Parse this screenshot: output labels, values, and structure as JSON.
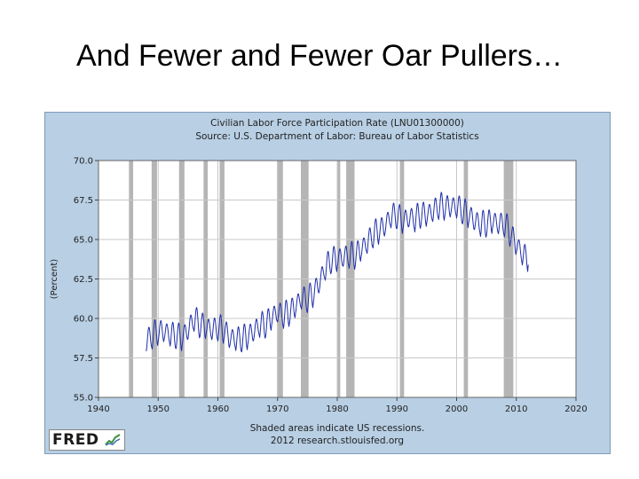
{
  "slide": {
    "title": "And Fewer and Fewer Oar Pullers…"
  },
  "logo": {
    "text": "FRED"
  },
  "chart_data": {
    "type": "line",
    "title": "Civilian Labor Force Participation Rate (LNU01300000)",
    "subtitle": "Source: U.S. Department of Labor: Bureau of Labor Statistics",
    "ylabel": "(Percent)",
    "xlabel": "",
    "footer": [
      "Shaded areas indicate US recessions.",
      "2012 research.stlouisfed.org"
    ],
    "xlim": [
      1940,
      2020
    ],
    "ylim": [
      55.0,
      70.0
    ],
    "xticks": [
      "1940",
      "1950",
      "1960",
      "1970",
      "1980",
      "1990",
      "2000",
      "2010",
      "2020"
    ],
    "yticks": [
      "55.0",
      "57.5",
      "60.0",
      "62.5",
      "65.0",
      "67.5",
      "70.0"
    ],
    "grid": true,
    "line_color": "#1f2fa8",
    "recession_color": "#b5b5b5",
    "recessions": [
      [
        1945.1,
        1945.8
      ],
      [
        1948.9,
        1949.8
      ],
      [
        1953.5,
        1954.4
      ],
      [
        1957.6,
        1958.3
      ],
      [
        1960.3,
        1961.1
      ],
      [
        1969.9,
        1970.9
      ],
      [
        1973.9,
        1975.2
      ],
      [
        1980.0,
        1980.5
      ],
      [
        1981.5,
        1982.9
      ],
      [
        1990.5,
        1991.2
      ],
      [
        2001.2,
        2001.9
      ],
      [
        2007.9,
        2009.5
      ]
    ],
    "series": [
      {
        "values": [
          [
            1948.0,
            58.6
          ],
          [
            1949.0,
            58.9
          ],
          [
            1950.0,
            59.2
          ],
          [
            1951.0,
            59.2
          ],
          [
            1952.0,
            59.0
          ],
          [
            1953.0,
            58.9
          ],
          [
            1954.0,
            58.8
          ],
          [
            1955.0,
            59.3
          ],
          [
            1956.0,
            60.0
          ],
          [
            1957.0,
            59.6
          ],
          [
            1958.0,
            59.5
          ],
          [
            1959.0,
            59.3
          ],
          [
            1960.0,
            59.4
          ],
          [
            1961.0,
            59.3
          ],
          [
            1962.0,
            58.8
          ],
          [
            1963.0,
            58.7
          ],
          [
            1964.0,
            58.7
          ],
          [
            1965.0,
            58.9
          ],
          [
            1966.0,
            59.2
          ],
          [
            1967.0,
            59.6
          ],
          [
            1968.0,
            59.6
          ],
          [
            1969.0,
            60.1
          ],
          [
            1970.0,
            60.4
          ],
          [
            1971.0,
            60.2
          ],
          [
            1972.0,
            60.4
          ],
          [
            1973.0,
            60.8
          ],
          [
            1974.0,
            61.3
          ],
          [
            1975.0,
            61.2
          ],
          [
            1976.0,
            61.6
          ],
          [
            1977.0,
            62.3
          ],
          [
            1978.0,
            63.2
          ],
          [
            1979.0,
            63.7
          ],
          [
            1980.0,
            63.8
          ],
          [
            1981.0,
            63.9
          ],
          [
            1982.0,
            64.0
          ],
          [
            1983.0,
            64.0
          ],
          [
            1984.0,
            64.4
          ],
          [
            1985.0,
            64.8
          ],
          [
            1986.0,
            65.3
          ],
          [
            1987.0,
            65.6
          ],
          [
            1988.0,
            65.9
          ],
          [
            1989.0,
            66.5
          ],
          [
            1990.0,
            66.5
          ],
          [
            1991.0,
            66.2
          ],
          [
            1992.0,
            66.4
          ],
          [
            1993.0,
            66.3
          ],
          [
            1994.0,
            66.6
          ],
          [
            1995.0,
            66.6
          ],
          [
            1996.0,
            66.8
          ],
          [
            1997.0,
            67.1
          ],
          [
            1998.0,
            67.1
          ],
          [
            1999.0,
            67.1
          ],
          [
            2000.0,
            67.1
          ],
          [
            2001.0,
            66.8
          ],
          [
            2002.0,
            66.6
          ],
          [
            2003.0,
            66.2
          ],
          [
            2004.0,
            66.0
          ],
          [
            2005.0,
            66.0
          ],
          [
            2006.0,
            66.2
          ],
          [
            2007.0,
            66.0
          ],
          [
            2008.0,
            66.0
          ],
          [
            2009.0,
            65.4
          ],
          [
            2010.0,
            64.7
          ],
          [
            2011.0,
            64.1
          ],
          [
            2012.0,
            63.7
          ]
        ],
        "seasonal_amplitude": 0.9
      }
    ]
  }
}
